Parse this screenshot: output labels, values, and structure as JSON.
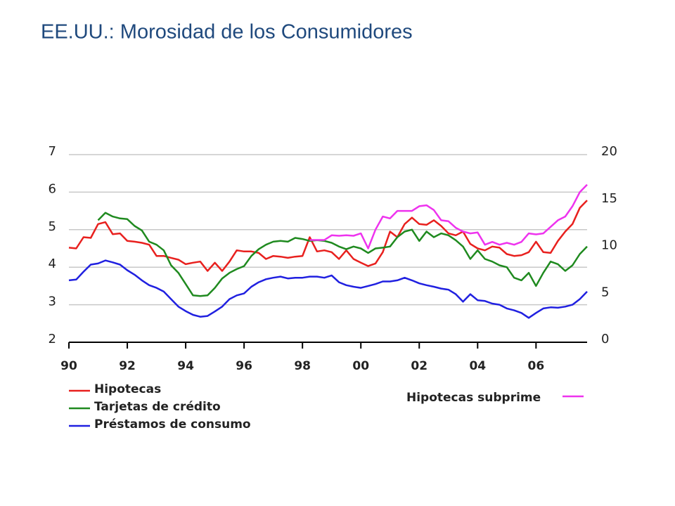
{
  "chart_data": {
    "type": "line",
    "title": "EE.UU.: Morosidad de los Consumidores",
    "x": [
      1990,
      1990.25,
      1990.5,
      1990.75,
      1991,
      1991.25,
      1991.5,
      1991.75,
      1992,
      1992.25,
      1992.5,
      1992.75,
      1993,
      1993.25,
      1993.5,
      1993.75,
      1994,
      1994.25,
      1994.5,
      1994.75,
      1995,
      1995.25,
      1995.5,
      1995.75,
      1996,
      1996.25,
      1996.5,
      1996.75,
      1997,
      1997.25,
      1997.5,
      1997.75,
      1998,
      1998.25,
      1998.5,
      1998.75,
      1999,
      1999.25,
      1999.5,
      1999.75,
      2000,
      2000.25,
      2000.5,
      2000.75,
      2001,
      2001.25,
      2001.5,
      2001.75,
      2002,
      2002.25,
      2002.5,
      2002.75,
      2003,
      2003.25,
      2003.5,
      2003.75,
      2004,
      2004.25,
      2004.5,
      2004.75,
      2005,
      2005.25,
      2005.5,
      2005.75,
      2006,
      2006.25,
      2006.5,
      2006.75,
      2007,
      2007.25,
      2007.5,
      2007.75
    ],
    "series": [
      {
        "name": "Hipotecas",
        "color": "#e8201e",
        "values": [
          4.52,
          4.5,
          4.8,
          4.78,
          5.15,
          5.2,
          4.88,
          4.9,
          4.7,
          4.68,
          4.65,
          4.6,
          4.3,
          4.3,
          4.25,
          4.2,
          4.08,
          4.12,
          4.15,
          3.9,
          4.12,
          3.9,
          4.15,
          4.45,
          4.42,
          4.42,
          4.38,
          4.22,
          4.3,
          4.28,
          4.25,
          4.28,
          4.3,
          4.8,
          4.42,
          4.45,
          4.4,
          4.22,
          4.45,
          4.22,
          4.12,
          4.03,
          4.1,
          4.4,
          4.95,
          4.8,
          5.15,
          5.32,
          5.15,
          5.13,
          5.25,
          5.1,
          4.9,
          4.85,
          4.95,
          4.62,
          4.5,
          4.45,
          4.55,
          4.52,
          4.35,
          4.3,
          4.32,
          4.4,
          4.68,
          4.4,
          4.38,
          4.7,
          4.95,
          5.15,
          5.58,
          5.78
        ]
      },
      {
        "name": "Tarjetas de crédito",
        "color": "#1f8a1f",
        "values": [
          null,
          null,
          null,
          null,
          5.25,
          5.45,
          5.35,
          5.3,
          5.28,
          5.1,
          4.98,
          4.68,
          4.6,
          4.45,
          4.05,
          3.85,
          3.55,
          3.25,
          3.23,
          3.25,
          3.45,
          3.7,
          3.85,
          3.95,
          4.03,
          4.3,
          4.48,
          4.6,
          4.68,
          4.7,
          4.68,
          4.78,
          4.75,
          4.7,
          4.72,
          4.7,
          4.65,
          4.55,
          4.48,
          4.55,
          4.5,
          4.38,
          4.5,
          4.52,
          4.55,
          4.8,
          4.95,
          5.0,
          4.7,
          4.95,
          4.8,
          4.9,
          4.85,
          4.72,
          4.55,
          4.22,
          4.45,
          4.22,
          4.15,
          4.05,
          4.0,
          3.72,
          3.65,
          3.85,
          3.5,
          3.85,
          4.15,
          4.08,
          3.9,
          4.05,
          4.35,
          4.55
        ]
      },
      {
        "name": "Préstamos de consumo",
        "color": "#2020e0",
        "values": [
          3.65,
          3.67,
          3.88,
          4.07,
          4.1,
          4.18,
          4.13,
          4.07,
          3.92,
          3.8,
          3.65,
          3.52,
          3.45,
          3.35,
          3.15,
          2.95,
          2.83,
          2.73,
          2.68,
          2.7,
          2.82,
          2.95,
          3.15,
          3.25,
          3.3,
          3.48,
          3.6,
          3.68,
          3.72,
          3.75,
          3.7,
          3.72,
          3.72,
          3.75,
          3.75,
          3.72,
          3.78,
          3.6,
          3.52,
          3.48,
          3.45,
          3.5,
          3.55,
          3.62,
          3.62,
          3.65,
          3.72,
          3.65,
          3.57,
          3.52,
          3.48,
          3.43,
          3.4,
          3.28,
          3.08,
          3.28,
          3.12,
          3.1,
          3.03,
          3.0,
          2.9,
          2.85,
          2.78,
          2.65,
          2.78,
          2.9,
          2.93,
          2.92,
          2.95,
          3.0,
          3.15,
          3.35
        ]
      },
      {
        "name": "Hipotecas subprime",
        "color": "#ee33ee",
        "axis": "y2",
        "values": [
          null,
          null,
          null,
          null,
          null,
          null,
          null,
          null,
          null,
          null,
          null,
          null,
          null,
          null,
          null,
          null,
          null,
          null,
          null,
          null,
          null,
          null,
          null,
          null,
          null,
          null,
          null,
          null,
          null,
          null,
          null,
          null,
          null,
          10.9,
          10.9,
          10.9,
          11.4,
          11.35,
          11.4,
          11.35,
          11.6,
          10.0,
          12.0,
          13.4,
          13.2,
          14.0,
          14.0,
          14.0,
          14.5,
          14.6,
          14.1,
          13.0,
          12.9,
          12.2,
          11.8,
          11.6,
          11.7,
          10.4,
          10.7,
          10.4,
          10.6,
          10.4,
          10.7,
          11.6,
          11.5,
          11.6,
          12.3,
          13.0,
          13.4,
          14.5,
          16.0,
          16.8
        ]
      }
    ],
    "xlim": [
      1990,
      2007.75
    ],
    "xticks": [
      {
        "value": 1990,
        "label": "90"
      },
      {
        "value": 1992,
        "label": "92"
      },
      {
        "value": 1994,
        "label": "94"
      },
      {
        "value": 1996,
        "label": "96"
      },
      {
        "value": 1998,
        "label": "98"
      },
      {
        "value": 2000,
        "label": "00"
      },
      {
        "value": 2002,
        "label": "02"
      },
      {
        "value": 2004,
        "label": "04"
      },
      {
        "value": 2006,
        "label": "06"
      }
    ],
    "ylim": [
      2,
      7
    ],
    "yticks": [
      2,
      3,
      4,
      5,
      6,
      7
    ],
    "y2lim": [
      0,
      20
    ],
    "y2ticks": [
      0,
      5,
      10,
      15,
      20
    ],
    "grid": true
  }
}
